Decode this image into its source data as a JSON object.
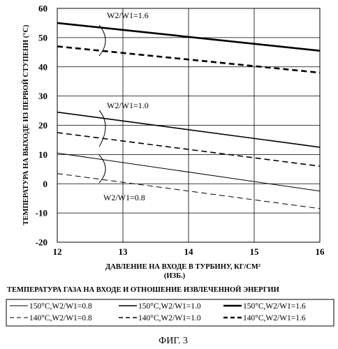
{
  "chart_data": {
    "type": "line",
    "xlabel": "ДАВЛЕНИЕ НА ВХОДЕ В ТУРБИНУ, КГ/СМ²",
    "xlabel2": "(ИЗБ.)",
    "ylabel": "ТЕМПЕРАТУРА НА ВЫХОДЕ ИЗ ПЕРВОЙ СТУПЕНИ (°C)",
    "xlim": [
      12,
      16
    ],
    "ylim": [
      -20,
      60
    ],
    "xticks": [
      "12",
      "13",
      "14",
      "15",
      "16"
    ],
    "yticks": [
      "60",
      "50",
      "40",
      "30",
      "20",
      "10",
      "0",
      "-10",
      "-20"
    ],
    "grid": true,
    "annotations": [
      "W2/W1=1.6",
      "W2/W1=1.0",
      "W2/W1=0.8"
    ],
    "legend_title": "ТЕМПЕРАТУРА ГАЗА НА ВХОДЕ И ОТНОШЕНИЕ ИЗВЛЕЧЕННОЙ ЭНЕРГИИ",
    "series": [
      {
        "name": "150°C,W2/W1=0.8",
        "style": "solid",
        "weight": "thin",
        "x": [
          12,
          16
        ],
        "y": [
          10.5,
          -2.5
        ]
      },
      {
        "name": "140°C,W2/W1=0.8",
        "style": "dashed",
        "weight": "thin",
        "x": [
          12,
          16
        ],
        "y": [
          3.5,
          -8.5
        ]
      },
      {
        "name": "150°C,W2/W1=1.0",
        "style": "solid",
        "weight": "medium",
        "x": [
          12,
          16
        ],
        "y": [
          24.5,
          12.5
        ]
      },
      {
        "name": "140°C,W2/W1=1.0",
        "style": "dashed",
        "weight": "medium",
        "x": [
          12,
          16
        ],
        "y": [
          17.5,
          6
        ]
      },
      {
        "name": "150°C,W2/W1=1.6",
        "style": "solid",
        "weight": "thick",
        "x": [
          12,
          16
        ],
        "y": [
          55,
          45.5
        ]
      },
      {
        "name": "140°C,W2/W1=1.6",
        "style": "dashed",
        "weight": "thick",
        "x": [
          12,
          16
        ],
        "y": [
          47,
          38
        ]
      }
    ]
  },
  "caption": "ФИГ. 3"
}
